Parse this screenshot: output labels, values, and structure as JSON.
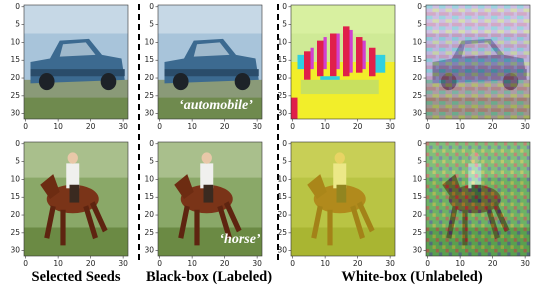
{
  "axes": {
    "yticks": [
      0,
      5,
      10,
      15,
      20,
      25,
      30
    ],
    "xticks": [
      0,
      10,
      20,
      30
    ]
  },
  "labels": {
    "automobile": "‘automobile’",
    "horse": "‘horse’"
  },
  "captions": [
    "Selected Seeds",
    "Black-box (Labeled)",
    "White-box (Unlabeled)"
  ]
}
